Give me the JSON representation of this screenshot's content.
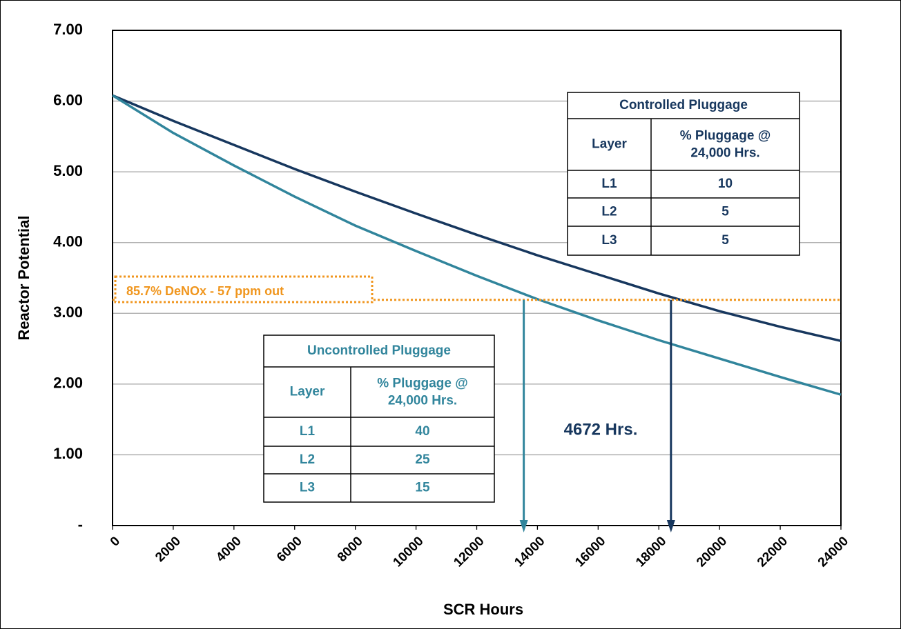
{
  "chart_data": {
    "type": "line",
    "x_label": "SCR Hours",
    "y_label": "Reactor Potential",
    "x": [
      0,
      2000,
      4000,
      6000,
      8000,
      10000,
      12000,
      14000,
      16000,
      18000,
      20000,
      22000,
      24000
    ],
    "series": [
      {
        "name": "Controlled Pluggage",
        "color": "#17375e",
        "values": [
          6.08,
          5.72,
          5.38,
          5.04,
          4.72,
          4.41,
          4.11,
          3.82,
          3.55,
          3.28,
          3.03,
          2.81,
          2.61
        ]
      },
      {
        "name": "Uncontrolled Pluggage",
        "color": "#31859c",
        "values": [
          6.08,
          5.55,
          5.09,
          4.65,
          4.24,
          3.88,
          3.53,
          3.2,
          2.9,
          2.62,
          2.36,
          2.1,
          1.85
        ]
      }
    ],
    "xlim": [
      0,
      24000
    ],
    "xticks": [
      0,
      2000,
      4000,
      6000,
      8000,
      10000,
      12000,
      14000,
      16000,
      18000,
      20000,
      22000,
      24000
    ],
    "ylim": [
      0,
      7
    ],
    "yticks": [
      {
        "value": 0,
        "label": "-"
      },
      {
        "value": 1,
        "label": "1.00"
      },
      {
        "value": 2,
        "label": "2.00"
      },
      {
        "value": 3,
        "label": "3.00"
      },
      {
        "value": 4,
        "label": "4.00"
      },
      {
        "value": 5,
        "label": "5.00"
      },
      {
        "value": 6,
        "label": "6.00"
      },
      {
        "value": 7,
        "label": "7.00"
      }
    ],
    "grid": true,
    "threshold": {
      "value": 3.19,
      "label": "85.7% DeNOx - 57 ppm out",
      "color": "#f0961e"
    },
    "markers": [
      {
        "x": 13550,
        "color": "#31859c"
      },
      {
        "x": 18400,
        "color": "#17375e"
      }
    ],
    "gap_label": "4672 Hrs.",
    "gap_color": "#17375e",
    "tables": [
      {
        "title": "Controlled Pluggage",
        "color": "#17375e",
        "headers": [
          "Layer",
          "% Pluggage @",
          "24,000 Hrs."
        ],
        "rows": [
          [
            "L1",
            "10"
          ],
          [
            "L2",
            "5"
          ],
          [
            "L3",
            "5"
          ]
        ]
      },
      {
        "title": "Uncontrolled Pluggage",
        "color": "#31859c",
        "headers": [
          "Layer",
          "% Pluggage @",
          "24,000 Hrs."
        ],
        "rows": [
          [
            "L1",
            "40"
          ],
          [
            "L2",
            "25"
          ],
          [
            "L3",
            "15"
          ]
        ]
      }
    ]
  }
}
